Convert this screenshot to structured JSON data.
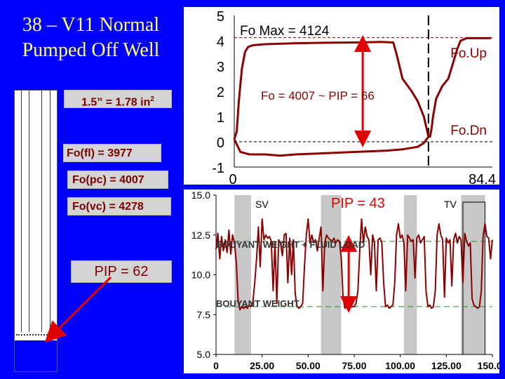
{
  "slide_title": "38 – V11 Normal Pumped Off Well",
  "labels": {
    "area": "1.5” = 1.78 in",
    "area_sup": "2",
    "fo_fl": "Fo(fl) = 3977",
    "fo_pc": "Fo(pc) = 4007",
    "fo_vc": "Fo(vc) = 4278",
    "pip_left": "PIP = 62"
  },
  "colors": {
    "background": "#0000ff",
    "title": "#ffff66",
    "trace": "#8b0000",
    "label_box": "#d4d4d4",
    "arrow": "#e00000"
  },
  "chart_data": [
    {
      "type": "line",
      "title": "",
      "xlim": [
        0,
        84.4
      ],
      "ylim": [
        -1,
        5
      ],
      "x_tick_labels": [
        "0",
        "84.4"
      ],
      "y_ticks": [
        -1,
        0,
        1,
        2,
        3,
        4,
        5
      ],
      "grid": false,
      "annotations": {
        "fo_max": "Fo Max = 4124",
        "fo": "Fo = 4007 ~ PIP = 66",
        "fo_up": "Fo.Up",
        "fo_dn": "Fo.Dn"
      },
      "reference_lines": {
        "fo_max_y": 4.12,
        "top_y": 4.05,
        "bottom_y": 0.0,
        "dashed_x": 63.5
      },
      "series": [
        {
          "values": [
            [
              0,
              0.1
            ],
            [
              0.8,
              0.4
            ],
            [
              1.5,
              1.6
            ],
            [
              2.5,
              2.9
            ],
            [
              3.5,
              3.55
            ],
            [
              4.5,
              3.75
            ],
            [
              6,
              3.82
            ],
            [
              10,
              3.86
            ],
            [
              20,
              3.9
            ],
            [
              30,
              3.92
            ],
            [
              40,
              3.93
            ],
            [
              48,
              3.95
            ],
            [
              52,
              3.93
            ],
            [
              53,
              3.5
            ],
            [
              54,
              3.0
            ],
            [
              55,
              2.5
            ],
            [
              58,
              2.0
            ],
            [
              60,
              1.6
            ],
            [
              62,
              1.0
            ],
            [
              63.5,
              0.2
            ],
            [
              64,
              0.2
            ],
            [
              64.5,
              0.5
            ],
            [
              65,
              1.0
            ],
            [
              66,
              1.7
            ],
            [
              68,
              2.2
            ],
            [
              70,
              2.5
            ],
            [
              71,
              2.9
            ],
            [
              72,
              3.3
            ],
            [
              73,
              3.7
            ],
            [
              74,
              4.0
            ],
            [
              76,
              4.1
            ],
            [
              80,
              4.1
            ],
            [
              84,
              4.1
            ]
          ]
        },
        {
          "values": [
            [
              0,
              0.1
            ],
            [
              2,
              -0.4
            ],
            [
              5,
              -0.5
            ],
            [
              10,
              -0.5
            ],
            [
              15,
              -0.55
            ],
            [
              20,
              -0.5
            ],
            [
              30,
              -0.45
            ],
            [
              40,
              -0.4
            ],
            [
              50,
              -0.35
            ],
            [
              55,
              -0.3
            ],
            [
              60,
              -0.2
            ],
            [
              62,
              -0.05
            ],
            [
              63.5,
              0.2
            ]
          ]
        }
      ],
      "arrow": {
        "x": 42,
        "y_from": 0.0,
        "y_to": 4.0
      }
    },
    {
      "type": "line",
      "title": "",
      "xlim": [
        0,
        150
      ],
      "ylim": [
        5.0,
        15.0
      ],
      "x_ticks": [
        0,
        25,
        50,
        75,
        100,
        125,
        150
      ],
      "x_tick_labels": [
        "0",
        "25.00",
        "50.00",
        "75.00",
        "100.00",
        "125.00",
        "150.00"
      ],
      "y_ticks": [
        5.0,
        7.5,
        10.0,
        12.5,
        15.0
      ],
      "y_tick_labels": [
        "5.0",
        "7.5",
        "10.0",
        "12.5",
        "15.0"
      ],
      "annotations": {
        "sv": "SV",
        "pip": "PIP = 43",
        "tv": "TV",
        "buoyant_fluid": "BOUYANT WEIGHT + FLUID LOAD",
        "buoyant": "BOUYANT WEIGHT"
      },
      "shaded_bands": [
        [
          10,
          19
        ],
        [
          57,
          68
        ],
        [
          102,
          109
        ],
        [
          133,
          146
        ]
      ],
      "reference_lines": {
        "upper_y": 12.1,
        "lower_y": 8.0
      },
      "series": [
        {
          "values": [
            [
              0,
              11.6
            ],
            [
              1,
              12.6
            ],
            [
              2,
              11.0
            ],
            [
              3,
              12.4
            ],
            [
              4,
              11.5
            ],
            [
              5,
              12.2
            ],
            [
              6,
              11.4
            ],
            [
              7,
              12.8
            ],
            [
              8,
              11.3
            ],
            [
              9,
              12.5
            ],
            [
              10,
              12.0
            ],
            [
              11,
              10.8
            ],
            [
              12,
              8.4
            ],
            [
              13,
              7.8
            ],
            [
              14,
              8.0
            ],
            [
              15,
              7.9
            ],
            [
              16,
              8.0
            ],
            [
              17,
              7.9
            ],
            [
              18,
              8.1
            ],
            [
              19,
              8.0
            ],
            [
              20,
              8.3
            ],
            [
              21,
              9.5
            ],
            [
              22,
              11.0
            ],
            [
              23,
              13.0
            ],
            [
              24,
              10.5
            ],
            [
              25,
              13.5
            ],
            [
              26,
              12.2
            ],
            [
              27,
              12.5
            ],
            [
              28,
              12.3
            ],
            [
              29,
              12.4
            ],
            [
              30,
              12.1
            ],
            [
              31,
              9.0
            ],
            [
              32,
              12.0
            ],
            [
              33,
              8.2
            ],
            [
              34,
              12.2
            ],
            [
              35,
              12.0
            ],
            [
              36,
              11.2
            ],
            [
              37,
              12.5
            ],
            [
              38,
              12.6
            ],
            [
              39,
              9.5
            ],
            [
              40,
              12.3
            ],
            [
              41,
              10.0
            ],
            [
              42,
              12.2
            ],
            [
              43,
              8.8
            ],
            [
              44,
              8.0
            ],
            [
              45,
              7.9
            ],
            [
              46,
              8.0
            ],
            [
              47,
              8.2
            ],
            [
              48,
              10.5
            ],
            [
              49,
              12.5
            ],
            [
              50,
              13.5
            ],
            [
              51,
              12.0
            ],
            [
              52,
              12.5
            ],
            [
              53,
              12.0
            ],
            [
              54,
              12.2
            ],
            [
              55,
              11.5
            ],
            [
              56,
              12.3
            ],
            [
              57,
              13.0
            ],
            [
              58,
              9.0
            ],
            [
              59,
              12.0
            ],
            [
              60,
              12.5
            ],
            [
              61,
              12.3
            ],
            [
              62,
              12.2
            ],
            [
              63,
              12.1
            ],
            [
              64,
              12.3
            ],
            [
              65,
              12.0
            ],
            [
              66,
              12.2
            ],
            [
              67,
              12.1
            ],
            [
              68,
              11.0
            ],
            [
              69,
              8.5
            ],
            [
              70,
              7.9
            ],
            [
              71,
              8.0
            ],
            [
              72,
              8.1
            ],
            [
              73,
              8.0
            ],
            [
              74,
              8.0
            ],
            [
              75,
              8.0
            ],
            [
              76,
              8.2
            ],
            [
              77,
              9.0
            ],
            [
              78,
              11.5
            ],
            [
              79,
              13.5
            ],
            [
              80,
              12.0
            ],
            [
              81,
              13.0
            ],
            [
              82,
              12.4
            ],
            [
              83,
              12.2
            ],
            [
              84,
              10.0
            ],
            [
              85,
              12.5
            ],
            [
              86,
              12.0
            ],
            [
              87,
              9.0
            ],
            [
              88,
              12.2
            ],
            [
              89,
              12.3
            ],
            [
              90,
              12.0
            ],
            [
              91,
              9.5
            ],
            [
              92,
              8.0
            ],
            [
              93,
              8.1
            ],
            [
              94,
              7.9
            ],
            [
              95,
              8.0
            ],
            [
              96,
              8.1
            ],
            [
              97,
              9.5
            ],
            [
              98,
              12.5
            ],
            [
              99,
              13.2
            ],
            [
              100,
              12.3
            ],
            [
              101,
              12.5
            ],
            [
              102,
              12.0
            ],
            [
              103,
              9.0
            ],
            [
              104,
              12.5
            ],
            [
              105,
              12.3
            ],
            [
              106,
              12.1
            ],
            [
              107,
              12.2
            ],
            [
              108,
              9.8
            ],
            [
              109,
              12.3
            ],
            [
              110,
              12.5
            ],
            [
              111,
              12.0
            ],
            [
              112,
              12.2
            ],
            [
              113,
              12.4
            ],
            [
              114,
              9.0
            ],
            [
              115,
              8.0
            ],
            [
              116,
              8.1
            ],
            [
              117,
              7.9
            ],
            [
              118,
              8.0
            ],
            [
              119,
              9.0
            ],
            [
              120,
              12.5
            ],
            [
              121,
              13.2
            ],
            [
              122,
              12.5
            ],
            [
              123,
              12.2
            ],
            [
              124,
              8.6
            ],
            [
              125,
              12.3
            ],
            [
              126,
              12.0
            ],
            [
              127,
              12.2
            ],
            [
              128,
              9.3
            ],
            [
              129,
              12.2
            ],
            [
              130,
              12.6
            ],
            [
              131,
              12.0
            ],
            [
              132,
              12.4
            ],
            [
              133,
              12.2
            ],
            [
              134,
              9.5
            ],
            [
              135,
              12.6
            ],
            [
              136,
              12.1
            ],
            [
              137,
              11.8
            ],
            [
              138,
              12.0
            ],
            [
              139,
              8.5
            ],
            [
              140,
              8.1
            ],
            [
              141,
              8.0
            ],
            [
              142,
              7.9
            ],
            [
              143,
              8.0
            ],
            [
              144,
              9.0
            ],
            [
              145,
              12.5
            ],
            [
              146,
              13.2
            ],
            [
              147,
              12.4
            ],
            [
              148,
              12.3
            ],
            [
              149,
              11.0
            ],
            [
              150,
              12.2
            ]
          ]
        }
      ],
      "arrow": {
        "x": 72,
        "y_from": 8.0,
        "y_to": 12.1
      }
    }
  ]
}
